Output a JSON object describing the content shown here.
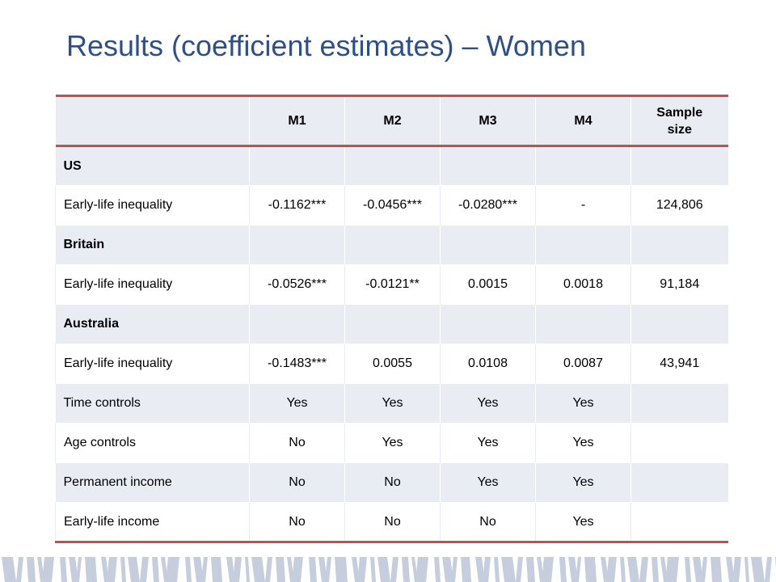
{
  "title": "Results (coefficient estimates) – Women",
  "table": {
    "headers": [
      "",
      "M1",
      "M2",
      "M3",
      "M4",
      "Sample size"
    ],
    "rows": [
      {
        "type": "group",
        "cells": [
          "US",
          "",
          "",
          "",
          "",
          ""
        ]
      },
      {
        "type": "data",
        "cells": [
          "Early-life inequality",
          "-0.1162***",
          "-0.0456***",
          "-0.0280***",
          "-",
          "124,806"
        ]
      },
      {
        "type": "group",
        "cells": [
          "Britain",
          "",
          "",
          "",
          "",
          ""
        ]
      },
      {
        "type": "data",
        "cells": [
          "Early-life inequality",
          "-0.0526***",
          "-0.0121**",
          "0.0015",
          "0.0018",
          "91,184"
        ]
      },
      {
        "type": "group",
        "cells": [
          "Australia",
          "",
          "",
          "",
          "",
          ""
        ]
      },
      {
        "type": "data",
        "cells": [
          "Early-life inequality",
          "-0.1483***",
          "0.0055",
          "0.0108",
          "0.0087",
          "43,941"
        ]
      },
      {
        "type": "shaded",
        "cells": [
          "Time controls",
          "Yes",
          "Yes",
          "Yes",
          "Yes",
          ""
        ]
      },
      {
        "type": "plain",
        "cells": [
          "Age controls",
          "No",
          "Yes",
          "Yes",
          "Yes",
          ""
        ]
      },
      {
        "type": "shaded",
        "cells": [
          "Permanent income",
          "No",
          "No",
          "Yes",
          "Yes",
          ""
        ]
      },
      {
        "type": "plain",
        "cells": [
          "Early-life income",
          "No",
          "No",
          "No",
          "Yes",
          ""
        ]
      }
    ]
  },
  "colors": {
    "title": "#2f4f85",
    "accent_rule": "#c0504d",
    "row_shade": "#e9ecf3",
    "band_bar": "#c6cedd"
  }
}
